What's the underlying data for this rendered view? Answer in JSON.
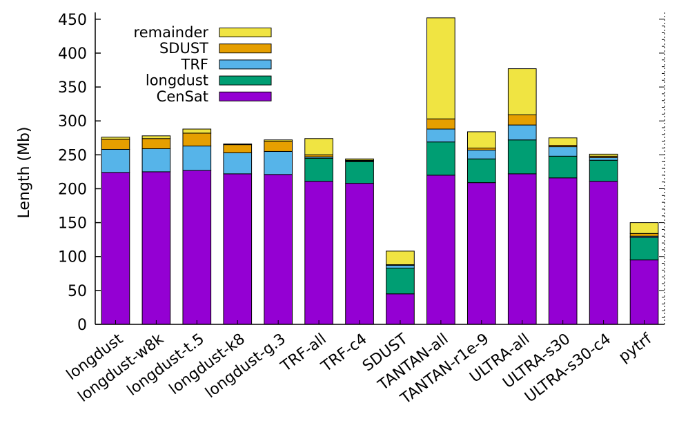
{
  "chart_data": {
    "type": "bar",
    "stacked": true,
    "title": "",
    "xlabel": "",
    "ylabel": "Length (Mb)",
    "ylim": [
      0,
      460
    ],
    "yticks": [
      0,
      50,
      100,
      150,
      200,
      250,
      300,
      350,
      400,
      450
    ],
    "grid": false,
    "legend_position": "top-left",
    "categories": [
      "longdust",
      "longdust-w8k",
      "longdust-t.5",
      "longdust-k8",
      "longdust-g.3",
      "TRF-all",
      "TRF-c4",
      "SDUST",
      "TANTAN-all",
      "TANTAN-r1e-9",
      "ULTRA-all",
      "ULTRA-s30",
      "ULTRA-s30-c4",
      "pytrf"
    ],
    "series": [
      {
        "name": "CenSat",
        "color": "#9400d3",
        "values": [
          224,
          225,
          227,
          222,
          221,
          211,
          208,
          45,
          220,
          209,
          222,
          216,
          211,
          95
        ]
      },
      {
        "name": "longdust",
        "color": "#009e73",
        "values": [
          0,
          0,
          0,
          0,
          0,
          34,
          32,
          38,
          49,
          35,
          50,
          32,
          31,
          33
        ]
      },
      {
        "name": "TRF",
        "color": "#56b4e9",
        "values": [
          34,
          34,
          36,
          31,
          34,
          2,
          1,
          4,
          19,
          13,
          22,
          14,
          4,
          2
        ]
      },
      {
        "name": "SDUST",
        "color": "#e69f00",
        "values": [
          15,
          15,
          19,
          12,
          15,
          3,
          1,
          1,
          15,
          3,
          15,
          2,
          2,
          4
        ]
      },
      {
        "name": "remainder",
        "color": "#f0e442",
        "values": [
          3,
          4,
          6,
          1,
          2,
          24,
          2,
          20,
          149,
          24,
          68,
          11,
          3,
          16
        ]
      }
    ],
    "legend_order": [
      "remainder",
      "SDUST",
      "TRF",
      "longdust",
      "CenSat"
    ]
  }
}
